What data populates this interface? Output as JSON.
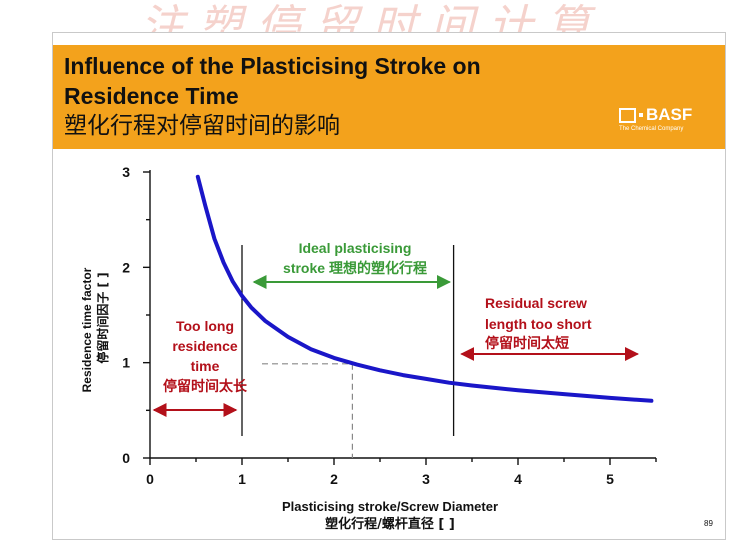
{
  "watermark": "注塑停留时间计算",
  "slide": {
    "title_en_line1": "Influence of the Plasticising Stroke on",
    "title_en_line2": "Residence Time",
    "title_cn": "塑化行程对停留时间的影响",
    "logo": {
      "name": "BASF",
      "tagline": "The Chemical Company"
    },
    "page_number": "89"
  },
  "chart_data": {
    "type": "line",
    "xlabel": "Plasticising stroke/Screw Diameter",
    "xlabel_cn": "塑化行程/螺杆直径 [ ]",
    "ylabel": "Residence time factor",
    "ylabel_cn": "停留时间因子 [ ]",
    "xlim": [
      0,
      5.5
    ],
    "ylim": [
      0,
      3
    ],
    "x_ticks": [
      0,
      1,
      2,
      3,
      4,
      5
    ],
    "y_ticks": [
      0,
      1,
      2,
      3
    ],
    "series": [
      {
        "color": "#1a16c8",
        "x": [
          0.52,
          0.6,
          0.7,
          0.8,
          0.9,
          1.0,
          1.1,
          1.25,
          1.5,
          1.75,
          2.0,
          2.25,
          2.5,
          2.75,
          3.0,
          3.25,
          3.5,
          4.0,
          4.5,
          5.0,
          5.45
        ],
        "y": [
          2.95,
          2.65,
          2.3,
          2.05,
          1.85,
          1.7,
          1.58,
          1.44,
          1.27,
          1.14,
          1.05,
          0.98,
          0.92,
          0.87,
          0.83,
          0.79,
          0.76,
          0.71,
          0.67,
          0.63,
          0.6
        ]
      }
    ],
    "reference": {
      "x": 2.2,
      "y": 1.03,
      "style": "dashed"
    },
    "dividers": [
      1.0,
      3.3
    ],
    "regions": [
      {
        "lines": [
          "Too long",
          "residence",
          "time",
          "停留时间太长"
        ],
        "x_range": [
          0,
          1.0
        ],
        "color": "#b3101a"
      },
      {
        "lines": [
          "Ideal plasticising",
          "stroke 理想的塑化行程"
        ],
        "x_range": [
          1.0,
          3.3
        ],
        "color": "#3a9a38"
      },
      {
        "lines": [
          "Residual screw",
          "length too short",
          "停留时间太短"
        ],
        "x_range": [
          3.3,
          5.3
        ],
        "color": "#b3101a"
      }
    ]
  }
}
